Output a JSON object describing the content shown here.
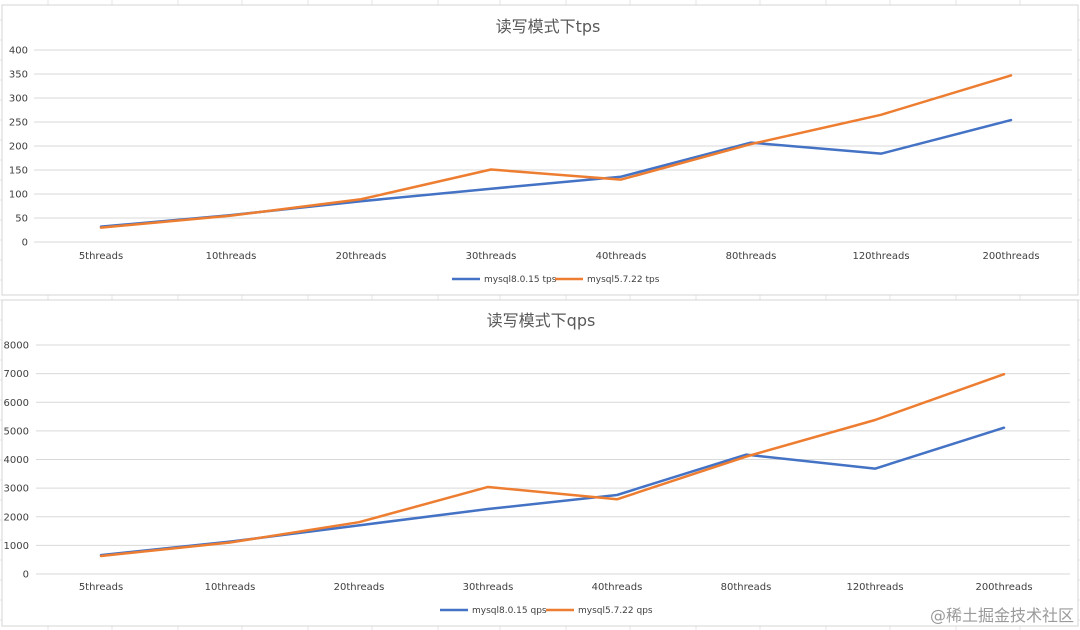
{
  "colors": {
    "mysql8": "#4472C4",
    "mysql57": "#ED7D31"
  },
  "watermark": "@稀土掘金技术社区",
  "chart_data": [
    {
      "type": "line",
      "title": "读写模式下tps",
      "categories": [
        "5threads",
        "10threads",
        "20threads",
        "30threads",
        "40threads",
        "80threads",
        "120threads",
        "200threads"
      ],
      "ylim": [
        0,
        400
      ],
      "yticks": [
        0,
        50,
        100,
        150,
        200,
        250,
        300,
        350,
        400
      ],
      "grid": true,
      "legend": "bottom",
      "series": [
        {
          "name": "mysql8.0.15 tps",
          "color": "#4472C4",
          "values": [
            32,
            56,
            85,
            111,
            136,
            207,
            184,
            254
          ]
        },
        {
          "name": "mysql5.7.22 tps",
          "color": "#ED7D31",
          "values": [
            30,
            55,
            89,
            151,
            130,
            204,
            265,
            347
          ]
        }
      ]
    },
    {
      "type": "line",
      "title": "读写模式下qps",
      "categories": [
        "5threads",
        "10threads",
        "20threads",
        "30threads",
        "40threads",
        "80threads",
        "120threads",
        "200threads"
      ],
      "ylim": [
        0,
        8000
      ],
      "yticks": [
        0,
        1000,
        2000,
        3000,
        4000,
        5000,
        6000,
        7000,
        8000
      ],
      "grid": true,
      "legend": "bottom",
      "series": [
        {
          "name": "mysql8.0.15 qps",
          "color": "#4472C4",
          "values": [
            660,
            1130,
            1700,
            2270,
            2760,
            4170,
            3680,
            5110
          ]
        },
        {
          "name": "mysql5.7.22 qps",
          "color": "#ED7D31",
          "values": [
            630,
            1100,
            1810,
            3040,
            2610,
            4100,
            5380,
            6980
          ]
        }
      ]
    }
  ]
}
